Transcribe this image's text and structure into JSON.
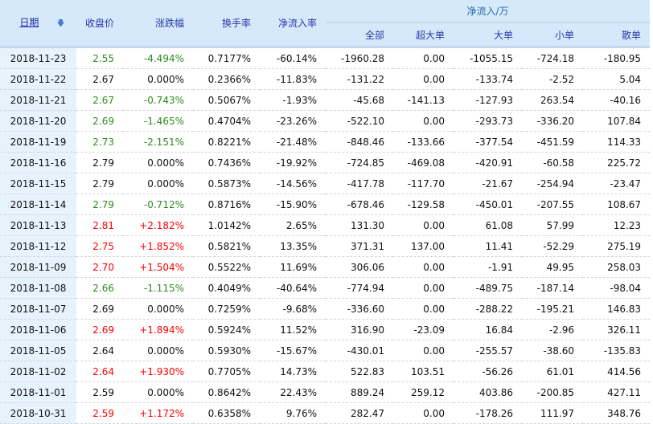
{
  "header": {
    "date": "日期",
    "sort_icon": "arrow-down-icon",
    "close": "收盘价",
    "change": "涨跌幅",
    "turnover": "换手率",
    "net_rate": "净流入率",
    "net_flow_group": "净流入/万",
    "total": "全部",
    "super_large": "超大单",
    "large": "大单",
    "small": "小单",
    "retail": "散单"
  },
  "colors": {
    "up": "#ff0000",
    "down": "#2e8b1e",
    "header_bg": "#d5e9fa"
  },
  "rows": [
    {
      "date": "2018-11-23",
      "close": "2.55",
      "change": "-4.494%",
      "turnover": "0.7177%",
      "net_rate": "-60.14%",
      "total": "-1960.28",
      "super_large": "0.00",
      "large": "-1055.15",
      "small": "-724.18",
      "retail": "-180.95"
    },
    {
      "date": "2018-11-22",
      "close": "2.67",
      "change": "0.000%",
      "turnover": "0.2366%",
      "net_rate": "-11.83%",
      "total": "-131.22",
      "super_large": "0.00",
      "large": "-133.74",
      "small": "-2.52",
      "retail": "5.04"
    },
    {
      "date": "2018-11-21",
      "close": "2.67",
      "change": "-0.743%",
      "turnover": "0.5067%",
      "net_rate": "-1.93%",
      "total": "-45.68",
      "super_large": "-141.13",
      "large": "-127.93",
      "small": "263.54",
      "retail": "-40.16"
    },
    {
      "date": "2018-11-20",
      "close": "2.69",
      "change": "-1.465%",
      "turnover": "0.4704%",
      "net_rate": "-23.26%",
      "total": "-522.10",
      "super_large": "0.00",
      "large": "-293.73",
      "small": "-336.20",
      "retail": "107.84"
    },
    {
      "date": "2018-11-19",
      "close": "2.73",
      "change": "-2.151%",
      "turnover": "0.8221%",
      "net_rate": "-21.48%",
      "total": "-848.46",
      "super_large": "-133.66",
      "large": "-377.54",
      "small": "-451.59",
      "retail": "114.33"
    },
    {
      "date": "2018-11-16",
      "close": "2.79",
      "change": "0.000%",
      "turnover": "0.7436%",
      "net_rate": "-19.92%",
      "total": "-724.85",
      "super_large": "-469.08",
      "large": "-420.91",
      "small": "-60.58",
      "retail": "225.72"
    },
    {
      "date": "2018-11-15",
      "close": "2.79",
      "change": "0.000%",
      "turnover": "0.5873%",
      "net_rate": "-14.56%",
      "total": "-417.78",
      "super_large": "-117.70",
      "large": "-21.67",
      "small": "-254.94",
      "retail": "-23.47"
    },
    {
      "date": "2018-11-14",
      "close": "2.79",
      "change": "-0.712%",
      "turnover": "0.8716%",
      "net_rate": "-15.90%",
      "total": "-678.46",
      "super_large": "-129.58",
      "large": "-450.01",
      "small": "-207.55",
      "retail": "108.67"
    },
    {
      "date": "2018-11-13",
      "close": "2.81",
      "change": "+2.182%",
      "turnover": "1.0142%",
      "net_rate": "2.65%",
      "total": "131.30",
      "super_large": "0.00",
      "large": "61.08",
      "small": "57.99",
      "retail": "12.23"
    },
    {
      "date": "2018-11-12",
      "close": "2.75",
      "change": "+1.852%",
      "turnover": "0.5821%",
      "net_rate": "13.35%",
      "total": "371.31",
      "super_large": "137.00",
      "large": "11.41",
      "small": "-52.29",
      "retail": "275.19"
    },
    {
      "date": "2018-11-09",
      "close": "2.70",
      "change": "+1.504%",
      "turnover": "0.5522%",
      "net_rate": "11.69%",
      "total": "306.06",
      "super_large": "0.00",
      "large": "-1.91",
      "small": "49.95",
      "retail": "258.03"
    },
    {
      "date": "2018-11-08",
      "close": "2.66",
      "change": "-1.115%",
      "turnover": "0.4049%",
      "net_rate": "-40.64%",
      "total": "-774.94",
      "super_large": "0.00",
      "large": "-489.75",
      "small": "-187.14",
      "retail": "-98.04"
    },
    {
      "date": "2018-11-07",
      "close": "2.69",
      "change": "0.000%",
      "turnover": "0.7259%",
      "net_rate": "-9.68%",
      "total": "-336.60",
      "super_large": "0.00",
      "large": "-288.22",
      "small": "-195.21",
      "retail": "146.83"
    },
    {
      "date": "2018-11-06",
      "close": "2.69",
      "change": "+1.894%",
      "turnover": "0.5924%",
      "net_rate": "11.52%",
      "total": "316.90",
      "super_large": "-23.09",
      "large": "16.84",
      "small": "-2.96",
      "retail": "326.11"
    },
    {
      "date": "2018-11-05",
      "close": "2.64",
      "change": "0.000%",
      "turnover": "0.5930%",
      "net_rate": "-15.67%",
      "total": "-430.01",
      "super_large": "0.00",
      "large": "-255.57",
      "small": "-38.60",
      "retail": "-135.83"
    },
    {
      "date": "2018-11-02",
      "close": "2.64",
      "change": "+1.930%",
      "turnover": "0.7705%",
      "net_rate": "14.73%",
      "total": "522.83",
      "super_large": "103.51",
      "large": "-56.26",
      "small": "61.01",
      "retail": "414.56"
    },
    {
      "date": "2018-11-01",
      "close": "2.59",
      "change": "0.000%",
      "turnover": "0.8642%",
      "net_rate": "22.43%",
      "total": "889.24",
      "super_large": "259.12",
      "large": "403.86",
      "small": "-200.85",
      "retail": "427.11"
    },
    {
      "date": "2018-10-31",
      "close": "2.59",
      "change": "+1.172%",
      "turnover": "0.6358%",
      "net_rate": "9.76%",
      "total": "282.47",
      "super_large": "0.00",
      "large": "-178.26",
      "small": "111.97",
      "retail": "348.76"
    }
  ]
}
